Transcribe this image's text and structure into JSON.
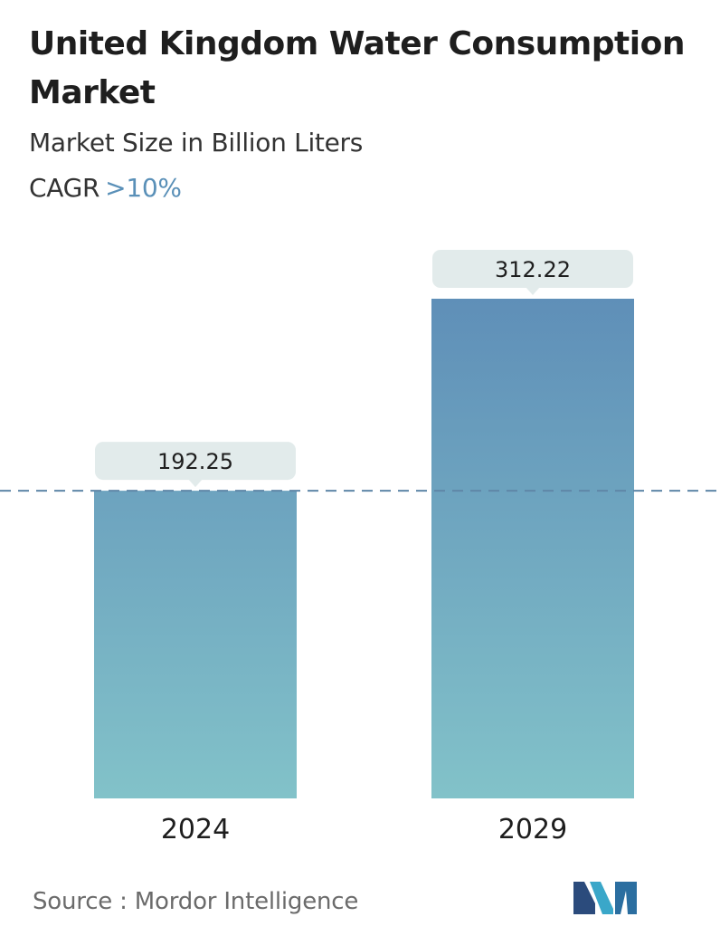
{
  "title": "United Kingdom Water Consumption Market",
  "subtitle": "Market Size in Billion Liters",
  "cagr": {
    "label": "CAGR",
    "value": ">10%"
  },
  "source": "Source :  Mordor Intelligence",
  "logo": {
    "name": "mordor-intelligence-logo",
    "colors": [
      "#2b4b7c",
      "#3aa7c9"
    ]
  },
  "colors": {
    "bar_top": "#5f8fb8",
    "bar_bottom": "#82c2c9",
    "label_bg": "#e2ebeb",
    "reference_line": "#5f86a8",
    "cagr_accent": "#5a90b8"
  },
  "chart_data": {
    "type": "bar",
    "categories": [
      "2024",
      "2029"
    ],
    "values": [
      192.25,
      312.22
    ],
    "data_labels": [
      "192.25",
      "312.22"
    ],
    "reference_line": 192.25,
    "ylim": [
      0,
      312.22
    ],
    "grid": false,
    "legend": "none"
  }
}
